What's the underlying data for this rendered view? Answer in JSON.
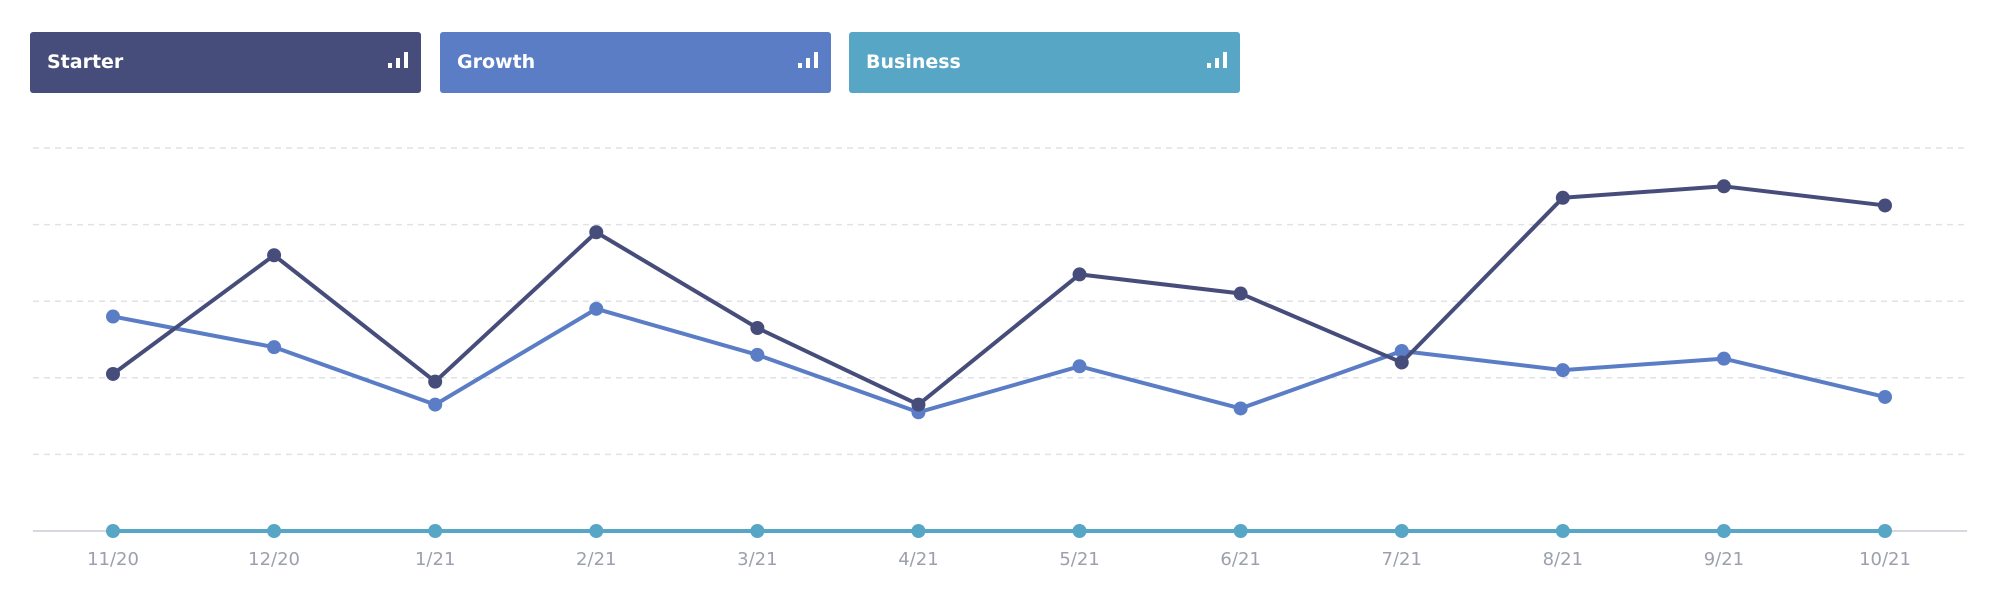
{
  "legend": [
    {
      "label": "Starter",
      "color": "#474d7b",
      "icon": "bar-chart-icon"
    },
    {
      "label": "Growth",
      "color": "#5b7dc6",
      "icon": "bar-chart-icon"
    },
    {
      "label": "Business",
      "color": "#58a6c6",
      "icon": "bar-chart-icon"
    }
  ],
  "chart_data": {
    "type": "line",
    "categories": [
      "11/20",
      "12/20",
      "1/21",
      "2/21",
      "3/21",
      "4/21",
      "5/21",
      "6/21",
      "7/21",
      "8/21",
      "9/21",
      "10/21"
    ],
    "series": [
      {
        "name": "Starter",
        "color": "#474d7b",
        "values": [
          41,
          72,
          39,
          78,
          53,
          33,
          67,
          62,
          44,
          87,
          90,
          85
        ]
      },
      {
        "name": "Growth",
        "color": "#5b7dc6",
        "values": [
          56,
          48,
          33,
          58,
          46,
          31,
          43,
          32,
          47,
          42,
          45,
          35
        ]
      },
      {
        "name": "Business",
        "color": "#58a6c6",
        "values": [
          0,
          0,
          0,
          0,
          0,
          0,
          0,
          0,
          0,
          0,
          0,
          0
        ]
      }
    ],
    "ylim": [
      0,
      100
    ],
    "grid": true,
    "y_axis_labels": false,
    "legend_placement": "top-left"
  }
}
